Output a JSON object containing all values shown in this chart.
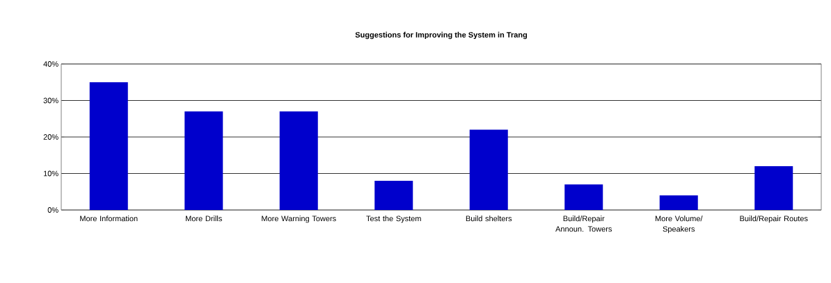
{
  "chart_data": {
    "type": "bar",
    "title": "Suggestions for Improving the System in Trang",
    "categories": [
      "More Information",
      "More Drills",
      "More Warning Towers",
      "Test the System",
      "Build shelters",
      "Build/Repair Announ. Towers",
      "More Volume/ Speakers",
      "Build/Repair Routes"
    ],
    "values": [
      35,
      27,
      27,
      8,
      22,
      7,
      4,
      12
    ],
    "color": "#0000cc",
    "ylim": [
      0,
      40
    ],
    "yticks": [
      {
        "value": 0,
        "label": "0%"
      },
      {
        "value": 10,
        "label": "10%"
      },
      {
        "value": 20,
        "label": "20%"
      },
      {
        "value": 30,
        "label": "30%"
      },
      {
        "value": 40,
        "label": "40%"
      }
    ],
    "grid": "y"
  }
}
